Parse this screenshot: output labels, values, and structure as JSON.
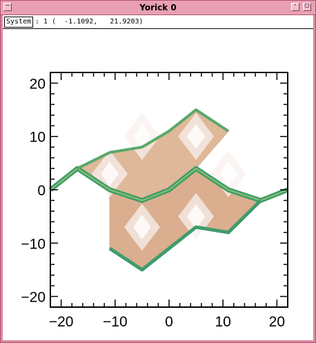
{
  "window": {
    "title": "Yorick 0"
  },
  "status": {
    "system_label": "System",
    "coord_text": ": 1 (  -1.1092,   21.9203)"
  },
  "icons": {
    "menu": "window-menu-icon",
    "minimize": "minimize-icon",
    "maximize": "maximize-icon"
  },
  "colors": {
    "titlebar": "#e8a0b4",
    "surface_light": "#f8f0ee",
    "surface_mid": "#dfb89a",
    "surface_edge": "#3e9c6a"
  },
  "chart_data": {
    "type": "surface",
    "title": "",
    "xlabel": "",
    "ylabel": "",
    "xlim": [
      -22,
      22
    ],
    "ylim": [
      -22,
      22
    ],
    "x_ticks": [
      -20,
      -10,
      0,
      10,
      20
    ],
    "y_ticks": [
      -20,
      -10,
      0,
      10,
      20
    ],
    "x_tick_labels": [
      "−20",
      "−10",
      "0",
      "10",
      "20"
    ],
    "y_tick_labels": [
      "−20",
      "−10",
      "0",
      "10",
      "20"
    ],
    "front_edge": {
      "x": [
        -22,
        -17,
        -11,
        -5,
        0,
        5,
        11,
        17,
        22
      ],
      "y": [
        0,
        4,
        0,
        -2,
        0,
        4,
        0,
        -2,
        0
      ]
    },
    "top_edge": {
      "x": [
        -17,
        -11,
        -5,
        0,
        5,
        11
      ],
      "y": [
        4,
        7,
        8,
        11,
        15,
        11
      ]
    },
    "bottom_edge": {
      "x": [
        -11,
        -5,
        0,
        5,
        11,
        17
      ],
      "y": [
        -11,
        -15,
        -11,
        -7,
        -8,
        -2
      ]
    }
  }
}
